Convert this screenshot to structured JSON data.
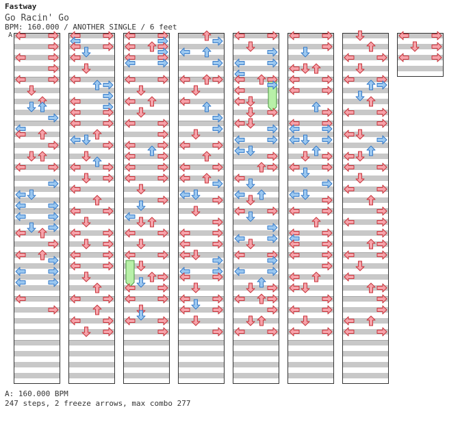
{
  "header": {
    "artist": "Fastway",
    "title": "Go Racin' Go",
    "info": "BPM: 160.000 / ANOTHER SINGLE / 6 feet",
    "marker": "A"
  },
  "footer": {
    "bpm_line": "A: 160.000 BPM",
    "steps_line": "247 steps, 2 freeze arrows, max combo 277"
  },
  "colors": {
    "stripe": "#c8c8c8",
    "frame": "#333333",
    "note_red": "#f5a3aa",
    "note_red_stroke": "#c8333a",
    "note_blue": "#9cc8f0",
    "note_blue_stroke": "#3278c8",
    "freeze": "#b8f0a8",
    "freeze_stroke": "#4a9a40"
  },
  "chart_data": {
    "type": "dance-chart",
    "columns": 8,
    "measures_per_column": [
      8,
      8,
      8,
      8,
      8,
      8,
      8,
      1
    ],
    "lanes": [
      "left",
      "down",
      "up",
      "right"
    ],
    "notes": [
      [
        0,
        0,
        [
          "L",
          "R"
        ]
      ],
      [
        0,
        2,
        [
          "R"
        ]
      ],
      [
        0,
        4,
        [
          "L",
          "R"
        ]
      ],
      [
        0,
        6,
        [
          "R"
        ]
      ],
      [
        0,
        8,
        [
          "L",
          "R"
        ]
      ],
      [
        0,
        10,
        [
          "D"
        ]
      ],
      [
        0,
        12,
        [
          "U"
        ]
      ],
      [
        0,
        13,
        [
          "D",
          "U"
        ]
      ],
      [
        0,
        15,
        [
          "R"
        ]
      ],
      [
        0,
        17,
        [
          "L"
        ]
      ],
      [
        0,
        18,
        [
          "L",
          "U"
        ]
      ],
      [
        0,
        20,
        [
          "R"
        ]
      ],
      [
        0,
        22,
        [
          "D",
          "U"
        ]
      ],
      [
        0,
        24,
        [
          "L",
          "R"
        ]
      ],
      [
        0,
        27,
        [
          "R"
        ]
      ],
      [
        0,
        29,
        [
          "L",
          "D"
        ]
      ],
      [
        0,
        31,
        [
          "L",
          "R"
        ]
      ],
      [
        0,
        33,
        [
          "L",
          "R"
        ]
      ],
      [
        0,
        35,
        [
          "D",
          "R"
        ]
      ],
      [
        0,
        36,
        [
          "L",
          "U"
        ]
      ],
      [
        0,
        38,
        [
          "R"
        ]
      ],
      [
        0,
        40,
        [
          "L",
          "U"
        ]
      ],
      [
        0,
        41,
        [
          "R"
        ]
      ],
      [
        0,
        43,
        [
          "L",
          "R"
        ]
      ],
      [
        0,
        45,
        [
          "L",
          "R"
        ]
      ],
      [
        0,
        48,
        [
          "L"
        ]
      ],
      [
        0,
        50,
        [
          "R"
        ]
      ],
      [
        1,
        0,
        [
          "L",
          "R"
        ]
      ],
      [
        1,
        1,
        [
          "L"
        ]
      ],
      [
        1,
        2,
        [
          "L",
          "R"
        ]
      ],
      [
        1,
        3,
        [
          "D"
        ]
      ],
      [
        1,
        4,
        [
          "L"
        ]
      ],
      [
        1,
        6,
        [
          "D"
        ]
      ],
      [
        1,
        8,
        [
          "L"
        ]
      ],
      [
        1,
        9,
        [
          "U",
          "R"
        ]
      ],
      [
        1,
        11,
        [
          "R"
        ]
      ],
      [
        1,
        12,
        [
          "L"
        ]
      ],
      [
        1,
        13,
        [
          "R"
        ]
      ],
      [
        1,
        14,
        [
          "L",
          "R"
        ]
      ],
      [
        1,
        16,
        [
          "L",
          "R"
        ]
      ],
      [
        1,
        18,
        [
          "U"
        ]
      ],
      [
        1,
        19,
        [
          "L",
          "D"
        ]
      ],
      [
        1,
        20,
        [
          "R"
        ]
      ],
      [
        1,
        22,
        [
          "D"
        ]
      ],
      [
        1,
        23,
        [
          "U"
        ]
      ],
      [
        1,
        24,
        [
          "L",
          "R"
        ]
      ],
      [
        1,
        26,
        [
          "D",
          "R"
        ]
      ],
      [
        1,
        28,
        [
          "L"
        ]
      ],
      [
        1,
        30,
        [
          "U"
        ]
      ],
      [
        1,
        32,
        [
          "L",
          "R"
        ]
      ],
      [
        1,
        34,
        [
          "D"
        ]
      ],
      [
        1,
        36,
        [
          "L",
          "R"
        ]
      ],
      [
        1,
        38,
        [
          "D",
          "R"
        ]
      ],
      [
        1,
        40,
        [
          "L",
          "R"
        ]
      ],
      [
        1,
        42,
        [
          "L",
          "R"
        ]
      ],
      [
        1,
        44,
        [
          "D"
        ]
      ],
      [
        1,
        46,
        [
          "U"
        ]
      ],
      [
        1,
        48,
        [
          "L",
          "R"
        ]
      ],
      [
        1,
        50,
        [
          "U"
        ]
      ],
      [
        1,
        52,
        [
          "L",
          "R"
        ]
      ],
      [
        1,
        54,
        [
          "D",
          "R"
        ]
      ],
      [
        2,
        0,
        [
          "L",
          "R"
        ]
      ],
      [
        2,
        1,
        [
          "R"
        ]
      ],
      [
        2,
        2,
        [
          "L",
          "U",
          "R"
        ]
      ],
      [
        2,
        3,
        [
          "R"
        ]
      ],
      [
        2,
        4,
        [
          "L",
          "R"
        ]
      ],
      [
        2,
        5,
        [
          "L",
          "R"
        ]
      ],
      [
        2,
        8,
        [
          "L",
          "R"
        ]
      ],
      [
        2,
        10,
        [
          "D"
        ]
      ],
      [
        2,
        12,
        [
          "L",
          "U"
        ]
      ],
      [
        2,
        14,
        [
          "D"
        ]
      ],
      [
        2,
        16,
        [
          "L",
          "R"
        ]
      ],
      [
        2,
        18,
        [
          "R"
        ]
      ],
      [
        2,
        20,
        [
          "L",
          "R"
        ]
      ],
      [
        2,
        21,
        [
          "U"
        ]
      ],
      [
        2,
        22,
        [
          "L",
          "R"
        ]
      ],
      [
        2,
        24,
        [
          "L",
          "R"
        ]
      ],
      [
        2,
        26,
        [
          "L",
          "R"
        ]
      ],
      [
        2,
        28,
        [
          "D"
        ]
      ],
      [
        2,
        30,
        [
          "R"
        ]
      ],
      [
        2,
        31,
        [
          "D"
        ]
      ],
      [
        2,
        33,
        [
          "L"
        ]
      ],
      [
        2,
        34,
        [
          "D",
          "U"
        ]
      ],
      [
        2,
        36,
        [
          "L",
          "R"
        ]
      ],
      [
        2,
        38,
        [
          "D"
        ]
      ],
      [
        2,
        40,
        [
          "L",
          "R"
        ]
      ],
      [
        2,
        42,
        [
          "D"
        ]
      ],
      [
        2,
        44,
        [
          "U",
          "R"
        ]
      ],
      [
        2,
        45,
        [
          "D"
        ]
      ],
      [
        2,
        46,
        [
          "L",
          "R"
        ]
      ],
      [
        2,
        48,
        [
          "L",
          "R"
        ]
      ],
      [
        2,
        50,
        [
          "D"
        ]
      ],
      [
        2,
        51,
        [
          "D"
        ]
      ],
      [
        2,
        52,
        [
          "L",
          "R"
        ]
      ],
      [
        2,
        54,
        [
          "R"
        ]
      ],
      [
        3,
        0,
        [
          "U"
        ]
      ],
      [
        3,
        1,
        [
          "R"
        ]
      ],
      [
        3,
        3,
        [
          "L",
          "U"
        ]
      ],
      [
        3,
        5,
        [
          "R"
        ]
      ],
      [
        3,
        8,
        [
          "L",
          "U",
          "R"
        ]
      ],
      [
        3,
        10,
        [
          "D"
        ]
      ],
      [
        3,
        12,
        [
          "L"
        ]
      ],
      [
        3,
        13,
        [
          "U"
        ]
      ],
      [
        3,
        15,
        [
          "R"
        ]
      ],
      [
        3,
        17,
        [
          "R"
        ]
      ],
      [
        3,
        18,
        [
          "D"
        ]
      ],
      [
        3,
        20,
        [
          "L",
          "R"
        ]
      ],
      [
        3,
        22,
        [
          "U"
        ]
      ],
      [
        3,
        24,
        [
          "L",
          "R"
        ]
      ],
      [
        3,
        26,
        [
          "L",
          "U"
        ]
      ],
      [
        3,
        27,
        [
          "R"
        ]
      ],
      [
        3,
        29,
        [
          "L",
          "D"
        ]
      ],
      [
        3,
        30,
        [
          "R"
        ]
      ],
      [
        3,
        32,
        [
          "D"
        ]
      ],
      [
        3,
        34,
        [
          "R"
        ]
      ],
      [
        3,
        36,
        [
          "L",
          "R"
        ]
      ],
      [
        3,
        38,
        [
          "L",
          "R"
        ]
      ],
      [
        3,
        40,
        [
          "L",
          "D"
        ]
      ],
      [
        3,
        41,
        [
          "R"
        ]
      ],
      [
        3,
        43,
        [
          "L",
          "R"
        ]
      ],
      [
        3,
        44,
        [
          "L",
          "R"
        ]
      ],
      [
        3,
        46,
        [
          "D"
        ]
      ],
      [
        3,
        48,
        [
          "L",
          "R"
        ]
      ],
      [
        3,
        49,
        [
          "D"
        ]
      ],
      [
        3,
        50,
        [
          "L",
          "R"
        ]
      ],
      [
        3,
        52,
        [
          "D"
        ]
      ],
      [
        3,
        54,
        [
          "R"
        ]
      ],
      [
        4,
        0,
        [
          "L",
          "R"
        ]
      ],
      [
        4,
        2,
        [
          "D"
        ]
      ],
      [
        4,
        3,
        [
          "R"
        ]
      ],
      [
        4,
        5,
        [
          "L",
          "R"
        ]
      ],
      [
        4,
        7,
        [
          "L"
        ]
      ],
      [
        4,
        8,
        [
          "L",
          "U",
          "R"
        ]
      ],
      [
        4,
        9,
        [
          "R"
        ]
      ],
      [
        4,
        10,
        [
          "L"
        ]
      ],
      [
        4,
        12,
        [
          "L",
          "D"
        ]
      ],
      [
        4,
        14,
        [
          "D",
          "R"
        ]
      ],
      [
        4,
        16,
        [
          "L",
          "D"
        ]
      ],
      [
        4,
        17,
        [
          "R"
        ]
      ],
      [
        4,
        19,
        [
          "L",
          "R"
        ]
      ],
      [
        4,
        21,
        [
          "L",
          "D"
        ]
      ],
      [
        4,
        22,
        [
          "R"
        ]
      ],
      [
        4,
        24,
        [
          "U",
          "R"
        ]
      ],
      [
        4,
        26,
        [
          "L"
        ]
      ],
      [
        4,
        27,
        [
          "D"
        ]
      ],
      [
        4,
        29,
        [
          "L",
          "U"
        ]
      ],
      [
        4,
        30,
        [
          "D"
        ]
      ],
      [
        4,
        32,
        [
          "L",
          "R"
        ]
      ],
      [
        4,
        33,
        [
          "D"
        ]
      ],
      [
        4,
        35,
        [
          "R"
        ]
      ],
      [
        4,
        37,
        [
          "L",
          "R"
        ]
      ],
      [
        4,
        38,
        [
          "D"
        ]
      ],
      [
        4,
        40,
        [
          "L",
          "R"
        ]
      ],
      [
        4,
        41,
        [
          "R"
        ]
      ],
      [
        4,
        43,
        [
          "L",
          "R"
        ]
      ],
      [
        4,
        45,
        [
          "U"
        ]
      ],
      [
        4,
        46,
        [
          "D",
          "R"
        ]
      ],
      [
        4,
        48,
        [
          "L",
          "U",
          "R"
        ]
      ],
      [
        4,
        50,
        [
          "R"
        ]
      ],
      [
        4,
        52,
        [
          "D",
          "U"
        ]
      ],
      [
        4,
        54,
        [
          "L",
          "R"
        ]
      ],
      [
        5,
        0,
        [
          "L",
          "R"
        ]
      ],
      [
        5,
        2,
        [
          "R"
        ]
      ],
      [
        5,
        3,
        [
          "D"
        ]
      ],
      [
        5,
        6,
        [
          "L",
          "D",
          "U"
        ]
      ],
      [
        5,
        8,
        [
          "L",
          "R"
        ]
      ],
      [
        5,
        10,
        [
          "L",
          "R"
        ]
      ],
      [
        5,
        13,
        [
          "U"
        ]
      ],
      [
        5,
        14,
        [
          "R"
        ]
      ],
      [
        5,
        16,
        [
          "L",
          "R"
        ]
      ],
      [
        5,
        17,
        [
          "L",
          "R"
        ]
      ],
      [
        5,
        19,
        [
          "L",
          "D",
          "R"
        ]
      ],
      [
        5,
        21,
        [
          "U"
        ]
      ],
      [
        5,
        22,
        [
          "D",
          "R"
        ]
      ],
      [
        5,
        24,
        [
          "L",
          "R"
        ]
      ],
      [
        5,
        25,
        [
          "D"
        ]
      ],
      [
        5,
        27,
        [
          "R"
        ]
      ],
      [
        5,
        29,
        [
          "L",
          "D"
        ]
      ],
      [
        5,
        30,
        [
          "R"
        ]
      ],
      [
        5,
        32,
        [
          "L",
          "R"
        ]
      ],
      [
        5,
        34,
        [
          "U"
        ]
      ],
      [
        5,
        36,
        [
          "L",
          "R"
        ]
      ],
      [
        5,
        37,
        [
          "L"
        ]
      ],
      [
        5,
        38,
        [
          "L",
          "R"
        ]
      ],
      [
        5,
        40,
        [
          "L",
          "R"
        ]
      ],
      [
        5,
        42,
        [
          "R"
        ]
      ],
      [
        5,
        44,
        [
          "L",
          "U"
        ]
      ],
      [
        5,
        46,
        [
          "L",
          "D"
        ]
      ],
      [
        5,
        48,
        [
          "R"
        ]
      ],
      [
        5,
        50,
        [
          "L",
          "R"
        ]
      ],
      [
        5,
        52,
        [
          "D"
        ]
      ],
      [
        5,
        54,
        [
          "L",
          "R"
        ]
      ],
      [
        6,
        0,
        [
          "D"
        ]
      ],
      [
        6,
        2,
        [
          "U"
        ]
      ],
      [
        6,
        4,
        [
          "L",
          "R"
        ]
      ],
      [
        6,
        6,
        [
          "D"
        ]
      ],
      [
        6,
        8,
        [
          "L",
          "R"
        ]
      ],
      [
        6,
        9,
        [
          "U",
          "R"
        ]
      ],
      [
        6,
        11,
        [
          "D"
        ]
      ],
      [
        6,
        12,
        [
          "U"
        ]
      ],
      [
        6,
        14,
        [
          "L",
          "R"
        ]
      ],
      [
        6,
        16,
        [
          "R"
        ]
      ],
      [
        6,
        18,
        [
          "L",
          "D"
        ]
      ],
      [
        6,
        19,
        [
          "R"
        ]
      ],
      [
        6,
        21,
        [
          "U"
        ]
      ],
      [
        6,
        22,
        [
          "L",
          "D"
        ]
      ],
      [
        6,
        24,
        [
          "L",
          "R"
        ]
      ],
      [
        6,
        26,
        [
          "D"
        ]
      ],
      [
        6,
        28,
        [
          "L",
          "R"
        ]
      ],
      [
        6,
        30,
        [
          "U"
        ]
      ],
      [
        6,
        32,
        [
          "R"
        ]
      ],
      [
        6,
        34,
        [
          "L",
          "R"
        ]
      ],
      [
        6,
        36,
        [
          "R"
        ]
      ],
      [
        6,
        38,
        [
          "U",
          "R"
        ]
      ],
      [
        6,
        40,
        [
          "L",
          "R"
        ]
      ],
      [
        6,
        42,
        [
          "D"
        ]
      ],
      [
        6,
        44,
        [
          "L"
        ]
      ],
      [
        6,
        46,
        [
          "U",
          "R"
        ]
      ],
      [
        6,
        48,
        [
          "R"
        ]
      ],
      [
        6,
        50,
        [
          "R"
        ]
      ],
      [
        6,
        52,
        [
          "L",
          "U"
        ]
      ],
      [
        6,
        54,
        [
          "L",
          "R"
        ]
      ],
      [
        7,
        0,
        [
          "L",
          "R"
        ]
      ],
      [
        7,
        2,
        [
          "D",
          "R"
        ]
      ],
      [
        7,
        4,
        [
          "L",
          "R"
        ]
      ]
    ],
    "freezes": [
      [
        2,
        41,
        45,
        "L"
      ],
      [
        4,
        8,
        13,
        "R"
      ]
    ]
  }
}
